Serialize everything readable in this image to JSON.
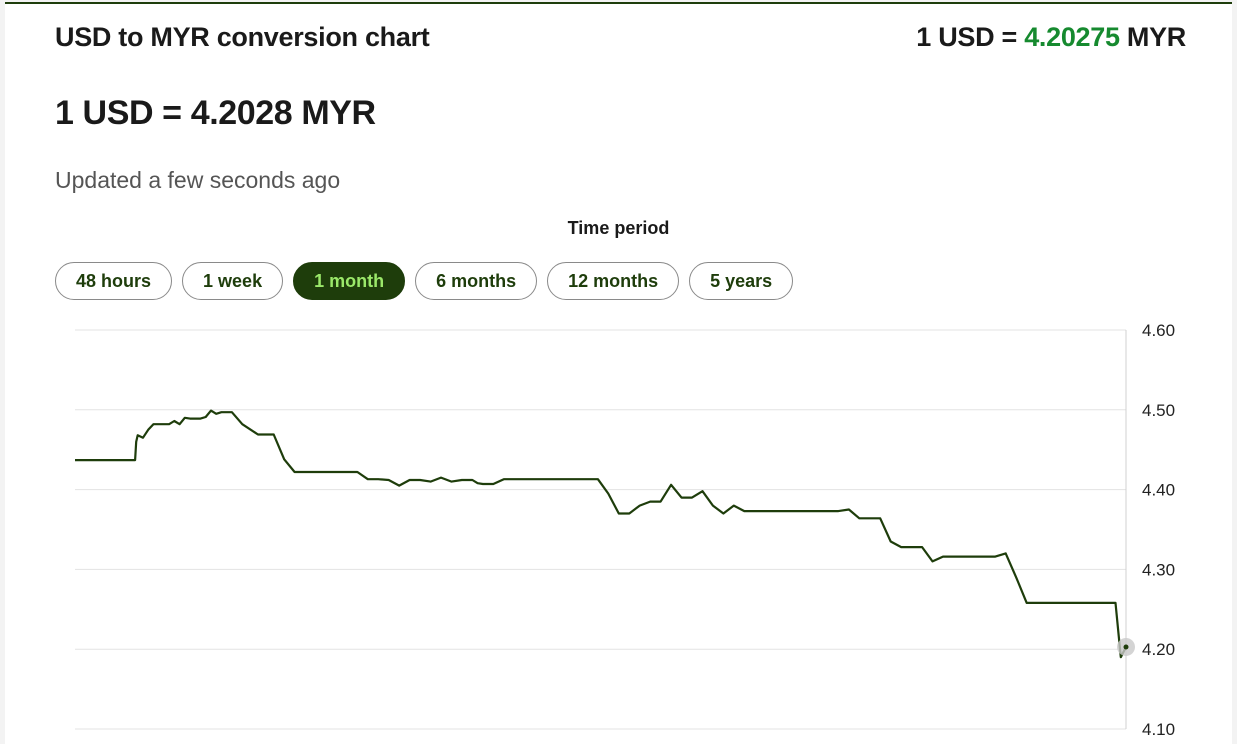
{
  "header": {
    "title": "USD to MYR conversion chart",
    "rate_prefix": "1 USD = ",
    "rate_value": "4.20275",
    "rate_suffix": " MYR"
  },
  "main": {
    "big_rate": "1 USD = 4.2028 MYR",
    "updated": "Updated a few seconds ago",
    "period_label": "Time period",
    "periods": [
      "48 hours",
      "1 week",
      "1 month",
      "6 months",
      "12 months",
      "5 years"
    ],
    "active_period": "1 month"
  },
  "colors": {
    "line": "#1e3d0b",
    "accent_green": "#168a2f",
    "active_text": "#9be86a"
  },
  "chart_data": {
    "type": "line",
    "title": "",
    "xlabel": "",
    "ylabel": "",
    "ylim": [
      4.1,
      4.6
    ],
    "yticks": [
      "4.60",
      "4.50",
      "4.40",
      "4.30",
      "4.20",
      "4.10"
    ],
    "grid": true,
    "series": [
      {
        "x": [
          0,
          11.5,
          11.7,
          12,
          13,
          14,
          15,
          16,
          17,
          18,
          19,
          20,
          21,
          22,
          23,
          24,
          25,
          26,
          27,
          28,
          29,
          30,
          32,
          35,
          38,
          40,
          42,
          44,
          46,
          48,
          50,
          52,
          54,
          56,
          58,
          60,
          62,
          64,
          66,
          68,
          70,
          72,
          74,
          75,
          76,
          77,
          78,
          80,
          82,
          84,
          86,
          88,
          90,
          92,
          94,
          96,
          98,
          100,
          102,
          104,
          106,
          108,
          110,
          112,
          114,
          116,
          118,
          120,
          122,
          124,
          126,
          128,
          130,
          132,
          134,
          136,
          138,
          140,
          142,
          144,
          146,
          148,
          150,
          152,
          154,
          156,
          158,
          160,
          162,
          164,
          166,
          168,
          170,
          172,
          174,
          176,
          178,
          180,
          182,
          184,
          186,
          188,
          190,
          192,
          194,
          196,
          198,
          199,
          200,
          201
        ],
        "values": [
          4.437,
          4.437,
          4.46,
          4.468,
          4.465,
          4.475,
          4.482,
          4.482,
          4.482,
          4.482,
          4.486,
          4.482,
          4.49,
          4.489,
          4.489,
          4.489,
          4.491,
          4.499,
          4.495,
          4.497,
          4.497,
          4.497,
          4.482,
          4.469,
          4.469,
          4.438,
          4.422,
          4.422,
          4.422,
          4.422,
          4.422,
          4.422,
          4.422,
          4.413,
          4.413,
          4.412,
          4.405,
          4.412,
          4.412,
          4.41,
          4.415,
          4.41,
          4.412,
          4.412,
          4.412,
          4.408,
          4.407,
          4.407,
          4.413,
          4.413,
          4.413,
          4.413,
          4.413,
          4.413,
          4.413,
          4.413,
          4.413,
          4.413,
          4.395,
          4.37,
          4.37,
          4.38,
          4.385,
          4.385,
          4.406,
          4.39,
          4.39,
          4.398,
          4.38,
          4.37,
          4.38,
          4.373,
          4.373,
          4.373,
          4.373,
          4.373,
          4.373,
          4.373,
          4.373,
          4.373,
          4.373,
          4.375,
          4.364,
          4.364,
          4.364,
          4.335,
          4.328,
          4.328,
          4.328,
          4.31,
          4.316,
          4.316,
          4.316,
          4.316,
          4.316,
          4.316,
          4.32,
          4.29,
          4.258,
          4.258,
          4.258,
          4.258,
          4.258,
          4.258,
          4.258,
          4.258,
          4.258,
          4.258,
          4.19,
          4.2028
        ]
      }
    ]
  }
}
